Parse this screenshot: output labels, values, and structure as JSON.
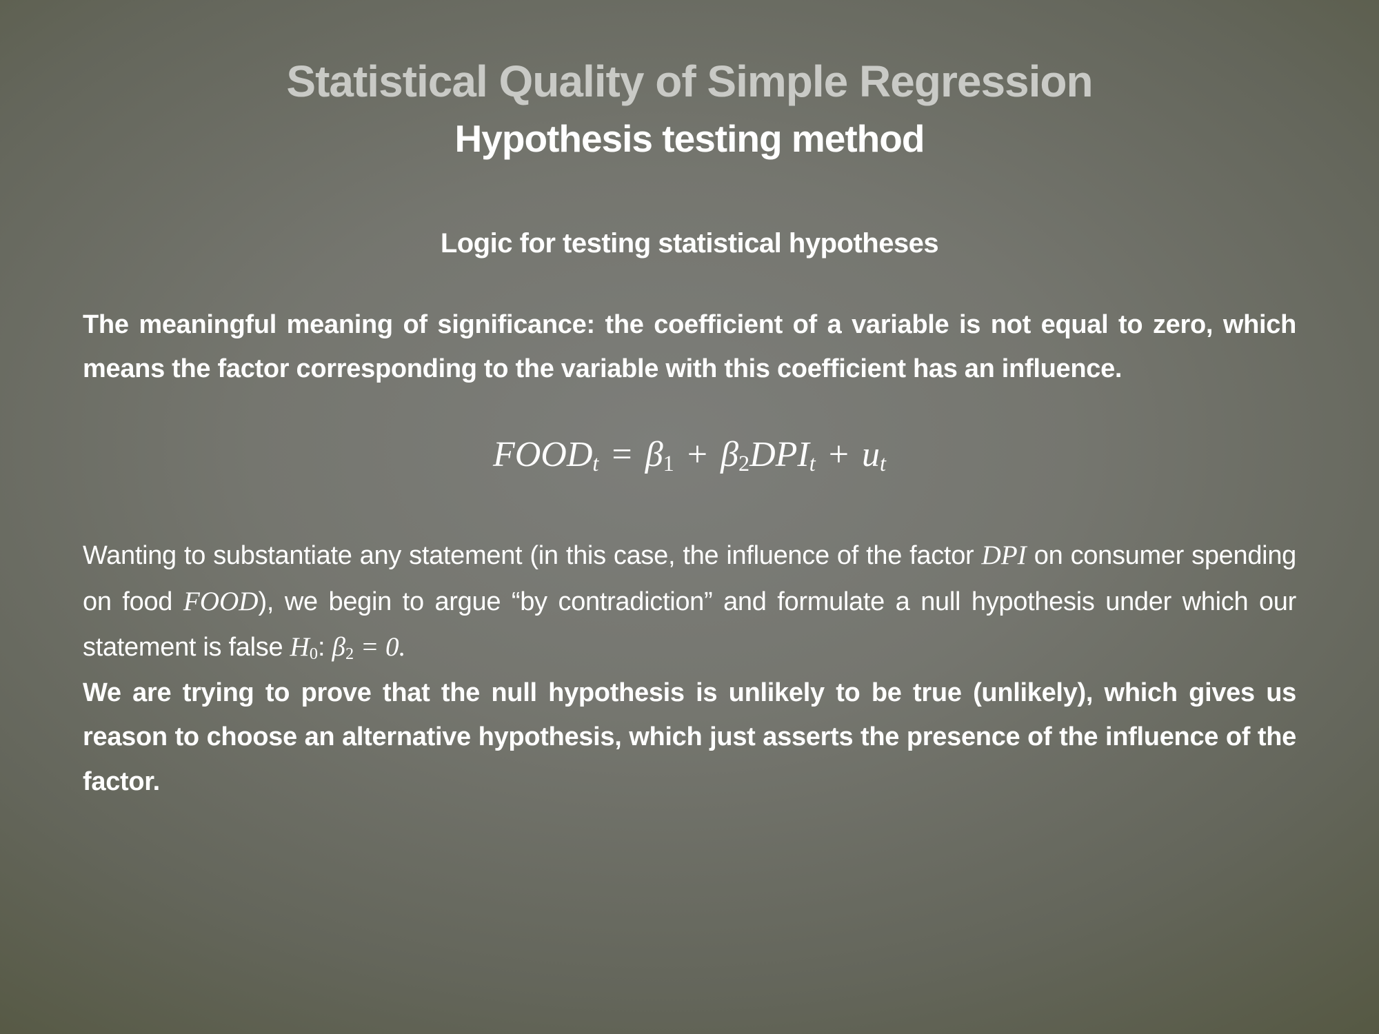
{
  "slide": {
    "title": "Statistical Quality of Simple Regression",
    "subtitle": "Hypothesis testing method",
    "section_heading": "Logic for testing statistical hypotheses",
    "significance_paragraph": "The meaningful meaning of significance: the coefficient of a variable is not equal to zero, which means the factor corresponding to the variable with this coefficient has an influence.",
    "equation": {
      "food": "FOOD",
      "food_sub": "t",
      "equals": " = ",
      "beta1": "β",
      "beta1_sub": "1",
      "plus1": " + ",
      "beta2": "β",
      "beta2_sub": "2",
      "dpi": "DPI",
      "dpi_sub": "t",
      "plus2": " + ",
      "u": "u",
      "u_sub": "t"
    },
    "argument_paragraph": {
      "t1": "Wanting to substantiate any statement (in this case, the influence of the factor ",
      "m1": "DPI",
      "t2": " on consumer spending on food ",
      "m2": "FOOD",
      "t3": "), we begin to argue “by contradiction” and formulate a null hypothesis under which our statement is false ",
      "h": "H",
      "h_sub": "0",
      "colon": ": ",
      "beta": "β",
      "beta_sub": "2",
      "tail": " = 0."
    },
    "conclusion_paragraph": "We are trying to prove that the null hypothesis is unlikely to be true (unlikely), which gives us reason to choose an alternative hypothesis, which just asserts the presence of the influence of the factor.",
    "colors": {
      "title_text": "#c9cac6",
      "body_text": "#ffffff",
      "background_center": "#7d7e7a",
      "background_edge": "#333a12"
    }
  }
}
